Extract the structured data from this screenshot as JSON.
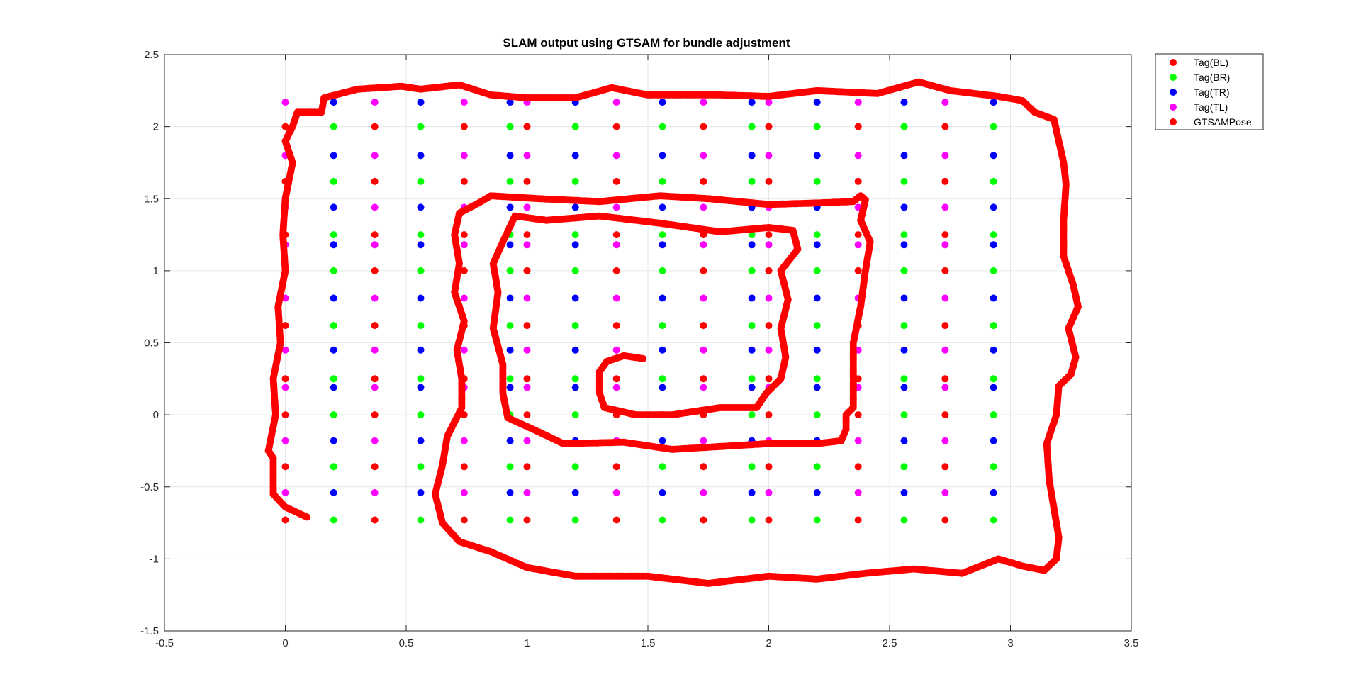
{
  "chart_data": {
    "type": "scatter",
    "title": "SLAM output using GTSAM for bundle adjustment",
    "xlabel": "",
    "ylabel": "",
    "xlim": [
      -0.5,
      3.5
    ],
    "ylim": [
      -1.5,
      2.5
    ],
    "xticks": [
      "-0.5",
      "0",
      "0.5",
      "1",
      "1.5",
      "2",
      "2.5",
      "3",
      "3.5"
    ],
    "yticks": [
      "-1.5",
      "-1",
      "-0.5",
      "0",
      "0.5",
      "1",
      "1.5",
      "2",
      "2.5"
    ],
    "grid": true,
    "legend_position": "outside-top-right",
    "tag_grid": {
      "x_bl": [
        0.0,
        0.37,
        0.74,
        1.0,
        1.37,
        1.73,
        2.0,
        2.37,
        2.73
      ],
      "x_br": [
        0.2,
        0.56,
        0.93,
        1.2,
        1.56,
        1.93,
        2.2,
        2.56,
        2.93
      ],
      "y_bl": [
        2.0,
        1.62,
        1.25,
        1.0,
        0.62,
        0.25,
        0.0,
        -0.36,
        -0.73
      ],
      "y_tr": [
        2.17,
        1.8,
        1.44,
        1.18,
        0.81,
        0.45,
        0.19,
        -0.18,
        -0.54
      ]
    },
    "series": [
      {
        "name": "Tag(BL)",
        "color": "#ff0000",
        "marker": "circle"
      },
      {
        "name": "Tag(BR)",
        "color": "#00ff00",
        "marker": "circle"
      },
      {
        "name": "Tag(TR)",
        "color": "#0000ff",
        "marker": "circle"
      },
      {
        "name": "Tag(TL)",
        "color": "#ff00ff",
        "marker": "circle"
      },
      {
        "name": "GTSAMPose",
        "color": "#ff0000",
        "marker": "circle",
        "path": [
          [
            0.09,
            -0.71
          ],
          [
            0.0,
            -0.64
          ],
          [
            -0.05,
            -0.55
          ],
          [
            -0.05,
            -0.3
          ],
          [
            -0.07,
            -0.25
          ],
          [
            -0.04,
            0.0
          ],
          [
            -0.05,
            0.25
          ],
          [
            -0.02,
            0.5
          ],
          [
            -0.03,
            0.75
          ],
          [
            0.0,
            1.0
          ],
          [
            -0.01,
            1.25
          ],
          [
            0.0,
            1.5
          ],
          [
            0.03,
            1.75
          ],
          [
            0.0,
            1.9
          ],
          [
            0.03,
            2.0
          ],
          [
            0.05,
            2.1
          ],
          [
            0.15,
            2.1
          ],
          [
            0.16,
            2.2
          ],
          [
            0.3,
            2.26
          ],
          [
            0.48,
            2.28
          ],
          [
            0.56,
            2.26
          ],
          [
            0.72,
            2.29
          ],
          [
            0.85,
            2.22
          ],
          [
            1.0,
            2.2
          ],
          [
            1.2,
            2.2
          ],
          [
            1.35,
            2.27
          ],
          [
            1.5,
            2.22
          ],
          [
            1.8,
            2.22
          ],
          [
            2.0,
            2.21
          ],
          [
            2.2,
            2.25
          ],
          [
            2.45,
            2.23
          ],
          [
            2.62,
            2.31
          ],
          [
            2.75,
            2.25
          ],
          [
            2.95,
            2.21
          ],
          [
            3.05,
            2.18
          ],
          [
            3.1,
            2.1
          ],
          [
            3.18,
            2.05
          ],
          [
            3.2,
            1.9
          ],
          [
            3.22,
            1.75
          ],
          [
            3.23,
            1.6
          ],
          [
            3.22,
            1.35
          ],
          [
            3.22,
            1.1
          ],
          [
            3.26,
            0.9
          ],
          [
            3.28,
            0.75
          ],
          [
            3.24,
            0.6
          ],
          [
            3.27,
            0.4
          ],
          [
            3.25,
            0.28
          ],
          [
            3.2,
            0.2
          ],
          [
            3.19,
            0.0
          ],
          [
            3.15,
            -0.2
          ],
          [
            3.16,
            -0.45
          ],
          [
            3.18,
            -0.65
          ],
          [
            3.2,
            -0.85
          ],
          [
            3.19,
            -1.0
          ],
          [
            3.14,
            -1.08
          ],
          [
            3.05,
            -1.05
          ],
          [
            2.95,
            -1.0
          ],
          [
            2.8,
            -1.1
          ],
          [
            2.6,
            -1.07
          ],
          [
            2.4,
            -1.1
          ],
          [
            2.2,
            -1.14
          ],
          [
            2.0,
            -1.12
          ],
          [
            1.85,
            -1.15
          ],
          [
            1.75,
            -1.17
          ],
          [
            1.5,
            -1.12
          ],
          [
            1.2,
            -1.12
          ],
          [
            1.0,
            -1.06
          ],
          [
            0.85,
            -0.95
          ],
          [
            0.72,
            -0.88
          ],
          [
            0.65,
            -0.75
          ],
          [
            0.62,
            -0.55
          ],
          [
            0.65,
            -0.35
          ],
          [
            0.67,
            -0.15
          ],
          [
            0.73,
            0.05
          ],
          [
            0.73,
            0.25
          ],
          [
            0.71,
            0.45
          ],
          [
            0.74,
            0.65
          ],
          [
            0.7,
            0.85
          ],
          [
            0.72,
            1.05
          ],
          [
            0.7,
            1.25
          ],
          [
            0.72,
            1.4
          ],
          [
            0.8,
            1.47
          ],
          [
            0.85,
            1.52
          ],
          [
            1.05,
            1.5
          ],
          [
            1.3,
            1.48
          ],
          [
            1.55,
            1.52
          ],
          [
            1.75,
            1.5
          ],
          [
            2.0,
            1.46
          ],
          [
            2.2,
            1.47
          ],
          [
            2.35,
            1.48
          ],
          [
            2.38,
            1.52
          ],
          [
            2.4,
            1.49
          ],
          [
            2.38,
            1.35
          ],
          [
            2.42,
            1.2
          ],
          [
            2.4,
            1.0
          ],
          [
            2.38,
            0.75
          ],
          [
            2.35,
            0.5
          ],
          [
            2.35,
            0.25
          ],
          [
            2.35,
            0.05
          ],
          [
            2.32,
            0.0
          ],
          [
            2.32,
            -0.1
          ],
          [
            2.3,
            -0.18
          ],
          [
            2.2,
            -0.2
          ],
          [
            2.0,
            -0.2
          ],
          [
            1.8,
            -0.22
          ],
          [
            1.6,
            -0.24
          ],
          [
            1.4,
            -0.19
          ],
          [
            1.15,
            -0.2
          ],
          [
            1.05,
            -0.12
          ],
          [
            0.92,
            -0.02
          ],
          [
            0.9,
            0.15
          ],
          [
            0.9,
            0.35
          ],
          [
            0.86,
            0.6
          ],
          [
            0.88,
            0.85
          ],
          [
            0.86,
            1.05
          ],
          [
            0.9,
            1.2
          ],
          [
            0.95,
            1.38
          ],
          [
            1.08,
            1.35
          ],
          [
            1.3,
            1.38
          ],
          [
            1.55,
            1.33
          ],
          [
            1.8,
            1.27
          ],
          [
            2.0,
            1.3
          ],
          [
            2.1,
            1.28
          ],
          [
            2.12,
            1.15
          ],
          [
            2.05,
            1.0
          ],
          [
            2.08,
            0.8
          ],
          [
            2.05,
            0.6
          ],
          [
            2.07,
            0.4
          ],
          [
            2.05,
            0.25
          ],
          [
            1.99,
            0.15
          ],
          [
            1.95,
            0.05
          ],
          [
            1.8,
            0.05
          ],
          [
            1.6,
            0.0
          ],
          [
            1.45,
            0.0
          ],
          [
            1.32,
            0.05
          ],
          [
            1.3,
            0.15
          ],
          [
            1.3,
            0.3
          ],
          [
            1.33,
            0.37
          ],
          [
            1.4,
            0.41
          ],
          [
            1.48,
            0.39
          ]
        ]
      }
    ]
  }
}
